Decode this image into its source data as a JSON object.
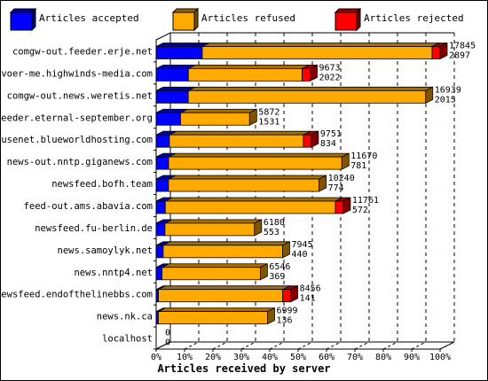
{
  "chart_data": {
    "type": "bar",
    "orientation": "horizontal",
    "stacked": true,
    "three_d": true,
    "xlabel": "Articles received by server",
    "xlim": [
      0,
      100
    ],
    "x_ticks": [
      "0%",
      "10%",
      "20%",
      "30%",
      "40%",
      "50%",
      "60%",
      "70%",
      "80%",
      "90%",
      "100%"
    ],
    "legend_position": "top",
    "series": [
      {
        "name": "Articles accepted",
        "color": "#0000ff"
      },
      {
        "name": "Articles refused",
        "color": "#ffaa00"
      },
      {
        "name": "Articles rejected",
        "color": "#ff0000"
      }
    ],
    "rows": [
      {
        "server": "comgw-out.feeder.erje.net",
        "total": "17845",
        "accepted_label": "2897",
        "accepted": 2897,
        "refused": 14448,
        "rejected": 500
      },
      {
        "server": "voer-me.highwinds-media.com",
        "total": "9673",
        "accepted_label": "2022",
        "accepted": 2022,
        "refused": 7151,
        "rejected": 500
      },
      {
        "server": "comgw-out.news.weretis.net",
        "total": "16939",
        "accepted_label": "2015",
        "accepted": 2015,
        "refused": 14924,
        "rejected": 0
      },
      {
        "server": "feeder.eternal-september.org",
        "total": "5872",
        "accepted_label": "1531",
        "accepted": 1531,
        "refused": 4341,
        "rejected": 0
      },
      {
        "server": "usenet.blueworldhosting.com",
        "total": "9751",
        "accepted_label": "834",
        "accepted": 834,
        "refused": 8417,
        "rejected": 500
      },
      {
        "server": "news-out.nntp.giganews.com",
        "total": "11670",
        "accepted_label": "781",
        "accepted": 781,
        "refused": 10889,
        "rejected": 0
      },
      {
        "server": "newsfeed.bofh.team",
        "total": "10240",
        "accepted_label": "774",
        "accepted": 774,
        "refused": 9466,
        "rejected": 0
      },
      {
        "server": "feed-out.ams.abavia.com",
        "total": "11761",
        "accepted_label": "572",
        "accepted": 572,
        "refused": 10689,
        "rejected": 500
      },
      {
        "server": "newsfeed.fu-berlin.de",
        "total": "6180",
        "accepted_label": "553",
        "accepted": 553,
        "refused": 5627,
        "rejected": 0
      },
      {
        "server": "news.samoylyk.net",
        "total": "7945",
        "accepted_label": "440",
        "accepted": 440,
        "refused": 7505,
        "rejected": 0
      },
      {
        "server": "news.nntp4.net",
        "total": "6546",
        "accepted_label": "369",
        "accepted": 369,
        "refused": 6177,
        "rejected": 0
      },
      {
        "server": "newsfeed.endofthelinebbs.com",
        "total": "8456",
        "accepted_label": "141",
        "accepted": 141,
        "refused": 7815,
        "rejected": 500
      },
      {
        "server": "news.nk.ca",
        "total": "6999",
        "accepted_label": "136",
        "accepted": 136,
        "refused": 6863,
        "rejected": 0
      },
      {
        "server": "localhost",
        "total": "0",
        "accepted_label": "0",
        "accepted": 0,
        "refused": 0,
        "rejected": 0
      }
    ]
  }
}
